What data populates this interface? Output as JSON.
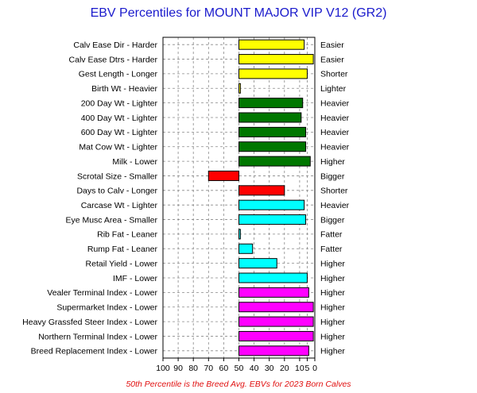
{
  "chart_data": {
    "type": "bar",
    "title": "EBV Percentiles for MOUNT MAJOR VIP V12 (GR2)",
    "footnote": "50th Percentile is the Breed Avg. EBVs for 2023 Born Calves",
    "x_ticks": [
      "100",
      "90",
      "80",
      "70",
      "60",
      "50",
      "40",
      "30",
      "20",
      "10",
      "5",
      "0"
    ],
    "xlim": [
      100,
      0
    ],
    "grid": true,
    "baseline": 50,
    "categories": [
      "Calv Ease Dir - Harder",
      "Calv Ease Dtrs - Harder",
      "Gest Length - Longer",
      "Birth Wt - Heavier",
      "200 Day Wt - Lighter",
      "400 Day Wt - Lighter",
      "600 Day Wt - Lighter",
      "Mat Cow Wt - Lighter",
      "Milk - Lower",
      "Scrotal Size - Smaller",
      "Days to Calv - Longer",
      "Carcase Wt - Lighter",
      "Eye Musc Area - Smaller",
      "Rib Fat - Leaner",
      "Rump Fat - Leaner",
      "Retail Yield - Lower",
      "IMF - Lower",
      "Vealer Terminal Index - Lower",
      "Supermarket Index - Lower",
      "Heavy Grassfed Steer Index - Lower",
      "Northern Terminal Index - Lower",
      "Breed Replacement Index - Lower"
    ],
    "right_labels": [
      "Easier",
      "Easier",
      "Shorter",
      "Lighter",
      "Heavier",
      "Heavier",
      "Heavier",
      "Heavier",
      "Higher",
      "Bigger",
      "Shorter",
      "Heavier",
      "Bigger",
      "Fatter",
      "Fatter",
      "Higher",
      "Higher",
      "Higher",
      "Higher",
      "Higher",
      "Higher",
      "Higher"
    ],
    "values": [
      7,
      1,
      5,
      49,
      8,
      9,
      6,
      6,
      3,
      70,
      20,
      7,
      6,
      49,
      41,
      25,
      5,
      4,
      1,
      1,
      1,
      4
    ],
    "colors": [
      "#ffff00",
      "#ffff00",
      "#ffff00",
      "#ffff00",
      "#007700",
      "#007700",
      "#007700",
      "#007700",
      "#007700",
      "#ff0000",
      "#ff0000",
      "#00ffff",
      "#00ffff",
      "#00ffff",
      "#00ffff",
      "#00ffff",
      "#00ffff",
      "#ff00ff",
      "#ff00ff",
      "#ff00ff",
      "#ff00ff",
      "#ff00ff"
    ]
  }
}
